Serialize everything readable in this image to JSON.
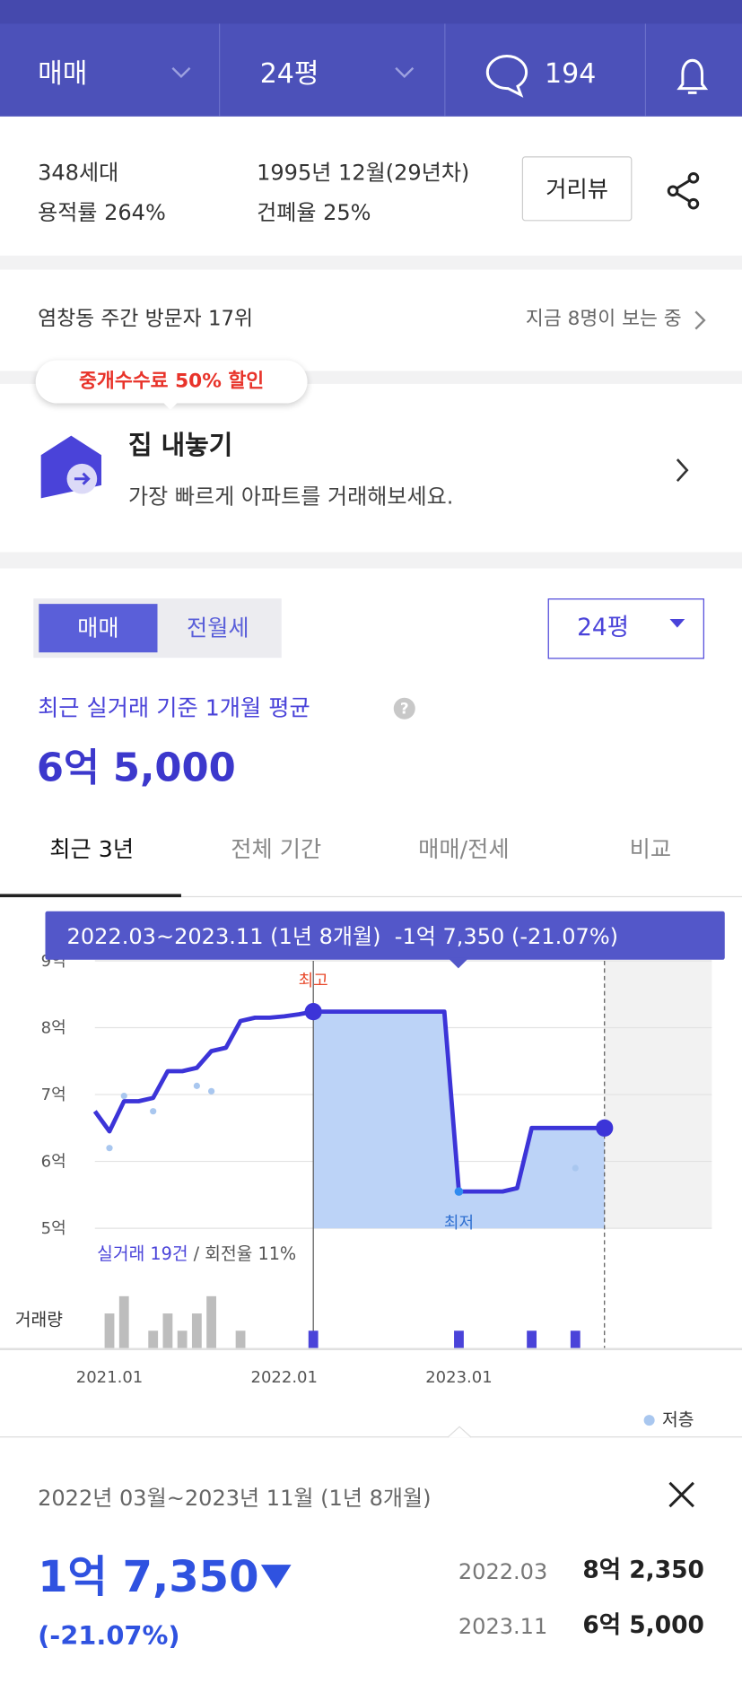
{
  "header": {
    "deal_type": "매매",
    "size": "24평",
    "comments": "194"
  },
  "info": {
    "households": "348세대",
    "floor_area_ratio": "용적률 264%",
    "built": "1995년 12월(29년차)",
    "coverage_ratio": "건폐율 25%",
    "street_view": "거리뷰"
  },
  "visitors": {
    "rank": "염창동 주간 방문자 17위",
    "watching": "지금 8명이 보는 중"
  },
  "listing": {
    "badge": "중개수수료 50% 할인",
    "title": "집 내놓기",
    "subtitle": "가장 빠르게 아파트를 거래해보세요."
  },
  "price": {
    "toggle": [
      "매매",
      "전월세"
    ],
    "size": "24평",
    "caption": "최근 실거래 기준 1개월 평균",
    "average": "6억 5,000",
    "tabs": [
      "최근 3년",
      "전체 기간",
      "매매/전세",
      "비교"
    ]
  },
  "chart_data": {
    "type": "line",
    "tooltip": "2022.03~2023.11 (1년 8개월)  -1억 7,350 (-21.07%)",
    "x": [
      "2020.12",
      "2021.01",
      "2021.02",
      "2021.03",
      "2021.04",
      "2021.05",
      "2021.06",
      "2021.07",
      "2021.08",
      "2021.09",
      "2021.10",
      "2021.11",
      "2021.12",
      "2022.01",
      "2022.02",
      "2022.03",
      "2022.04",
      "2022.05",
      "2022.06",
      "2022.07",
      "2022.08",
      "2022.09",
      "2022.10",
      "2022.11",
      "2022.12",
      "2023.01",
      "2023.02",
      "2023.03",
      "2023.04",
      "2023.05",
      "2023.06",
      "2023.07",
      "2023.08",
      "2023.09",
      "2023.10",
      "2023.11"
    ],
    "values": [
      6.75,
      6.45,
      6.9,
      6.9,
      6.95,
      7.35,
      7.35,
      7.4,
      7.65,
      7.7,
      8.1,
      8.15,
      8.15,
      8.17,
      8.2,
      8.24,
      8.24,
      8.24,
      8.24,
      8.24,
      8.24,
      8.24,
      8.24,
      8.24,
      8.24,
      5.55,
      5.55,
      5.55,
      5.55,
      5.6,
      6.5,
      6.5,
      6.5,
      6.5,
      6.5,
      6.5
    ],
    "color": "#3c34d8",
    "range": [
      "2022.03",
      "2023.11"
    ],
    "ylim": [
      5,
      9
    ],
    "yticks": [
      {
        "value": 5,
        "label": "5억"
      },
      {
        "value": 6,
        "label": "6억"
      },
      {
        "value": 7,
        "label": "7억"
      },
      {
        "value": 8,
        "label": "8억"
      },
      {
        "value": 9,
        "label": "9억"
      }
    ],
    "xticks": [
      "2021.01",
      "2022.01",
      "2023.01"
    ],
    "max_label": "최고",
    "min_label": "최저",
    "low_floor": {
      "name": "저층",
      "color": "#a9c7ef",
      "x": [
        "2021.01",
        "2021.02",
        "2021.04",
        "2021.07",
        "2021.08",
        "2023.09"
      ],
      "values": [
        6.2,
        6.98,
        6.75,
        7.13,
        7.05,
        5.9
      ]
    },
    "trades": "실거래 19건",
    "turnover": "/ 회전율 11%",
    "volume": {
      "label": "거래량",
      "x": [
        "2021.01",
        "2021.02",
        "2021.04",
        "2021.05",
        "2021.06",
        "2021.07",
        "2021.08",
        "2021.10",
        "2022.03",
        "2023.01",
        "2023.06",
        "2023.09"
      ],
      "values": [
        2,
        3,
        1,
        2,
        1,
        2,
        3,
        1,
        1,
        1,
        1,
        1
      ]
    }
  },
  "summary": {
    "period": "2022년 03월~2023년 11월 (1년 8개월)",
    "change": "1억 7,350",
    "change_pct": "(-21.07%)",
    "rows": [
      {
        "date": "2022.03",
        "price": "8억 2,350"
      },
      {
        "date": "2023.11",
        "price": "6억 5,000"
      }
    ]
  }
}
